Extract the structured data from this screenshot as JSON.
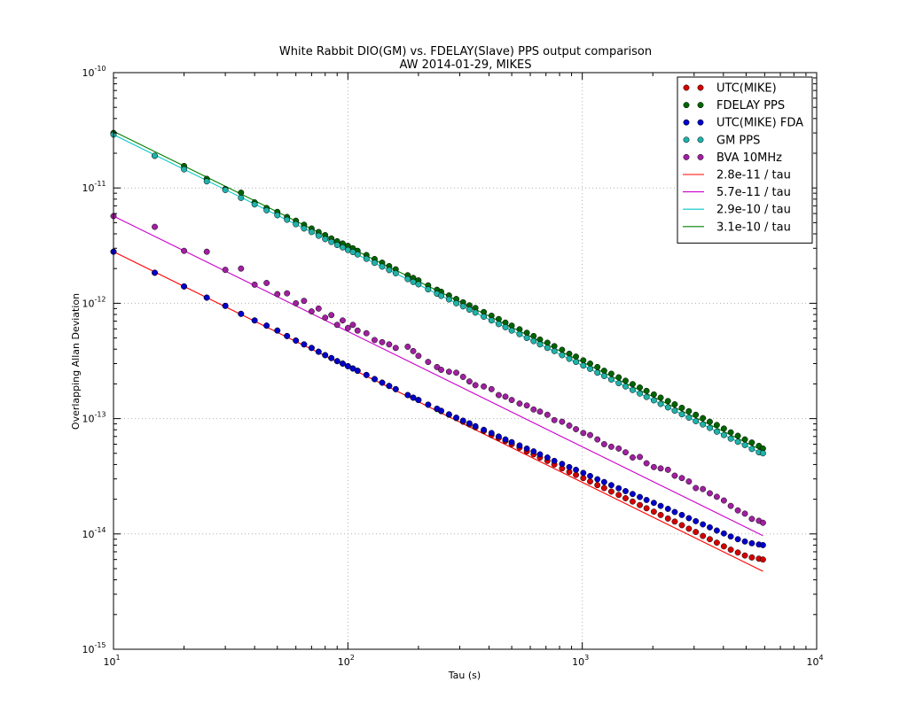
{
  "chart_data": {
    "type": "scatter",
    "title": "White Rabbit DIO(GM) vs. FDELAY(Slave) PPS output comparison",
    "subtitle": "AW 2014-01-29, MIKES",
    "xlabel": "Tau (s)",
    "ylabel": "Overlapping Allan Deviation",
    "x_scale": "log",
    "y_scale": "log",
    "xlim": [
      10,
      10000
    ],
    "ylim": [
      1e-15,
      1e-10
    ],
    "grid": true,
    "legend_position": "top-right",
    "x_tick_labels": [
      {
        "base": "10",
        "exp": "1"
      },
      {
        "base": "10",
        "exp": "2"
      },
      {
        "base": "10",
        "exp": "3"
      },
      {
        "base": "10",
        "exp": "4"
      }
    ],
    "y_tick_labels": [
      {
        "base": "10",
        "exp": "-15"
      },
      {
        "base": "10",
        "exp": "-14"
      },
      {
        "base": "10",
        "exp": "-13"
      },
      {
        "base": "10",
        "exp": "-12"
      },
      {
        "base": "10",
        "exp": "-11"
      },
      {
        "base": "10",
        "exp": "-10"
      }
    ],
    "tau": [
      10,
      15,
      20,
      25,
      30,
      35,
      40,
      45,
      50,
      55,
      60,
      65,
      70,
      75,
      80,
      85,
      90,
      95,
      100,
      105,
      110,
      120,
      130,
      140,
      150,
      160,
      180,
      190,
      200,
      220,
      240,
      250,
      270,
      290,
      310,
      330,
      350,
      380,
      410,
      440,
      470,
      500,
      540,
      580,
      620,
      660,
      710,
      760,
      820,
      880,
      940,
      1010,
      1080,
      1160,
      1240,
      1330,
      1430,
      1530,
      1640,
      1760,
      1880,
      2020,
      2160,
      2320,
      2480,
      2660,
      2850,
      3050,
      3270,
      3500,
      3750,
      4020,
      4300,
      4610,
      4940,
      5290,
      5670,
      5900
    ],
    "series": [
      {
        "name": "UTC(MIKE)",
        "kind": "points",
        "color": "#d40000",
        "values": [
          2.8e-12,
          1.84e-12,
          1.4e-12,
          1.12e-12,
          9.5e-13,
          8.1e-13,
          7.1e-13,
          6.4e-13,
          5.8e-13,
          5.2e-13,
          4.75e-13,
          4.4e-13,
          4.1e-13,
          3.8e-13,
          3.55e-13,
          3.35e-13,
          3.15e-13,
          3e-13,
          2.85e-13,
          2.72e-13,
          2.6e-13,
          2.39e-13,
          2.2e-13,
          2.05e-13,
          1.92e-13,
          1.8e-13,
          1.6e-13,
          1.52e-13,
          1.45e-13,
          1.32e-13,
          1.21e-13,
          1.16e-13,
          1.08e-13,
          1.01e-13,
          9.4e-14,
          8.9e-14,
          8.4e-14,
          7.8e-14,
          7.2e-14,
          6.8e-14,
          6.4e-14,
          6e-14,
          5.6e-14,
          5.2e-14,
          4.9e-14,
          4.6e-14,
          4.3e-14,
          4e-14,
          3.7e-14,
          3.45e-14,
          3.25e-14,
          3.05e-14,
          2.85e-14,
          2.65e-14,
          2.5e-14,
          2.33e-14,
          2.18e-14,
          2.04e-14,
          1.91e-14,
          1.78e-14,
          1.67e-14,
          1.56e-14,
          1.46e-14,
          1.36e-14,
          1.28e-14,
          1.19e-14,
          1.11e-14,
          1.04e-14,
          9.6e-15,
          9e-15,
          8.4e-15,
          7.8e-15,
          7.3e-15,
          6.9e-15,
          6.5e-15,
          6.25e-15,
          6.1e-15,
          6e-15
        ]
      },
      {
        "name": "FDELAY PPS",
        "kind": "points",
        "color": "#006400",
        "values": [
          3e-11,
          1.9e-11,
          1.55e-11,
          1.2e-11,
          9.8e-12,
          9.1e-12,
          7.5e-12,
          6.7e-12,
          6.2e-12,
          5.6e-12,
          5.2e-12,
          4.8e-12,
          4.45e-12,
          4.15e-12,
          3.9e-12,
          3.65e-12,
          3.45e-12,
          3.3e-12,
          3.15e-12,
          3e-12,
          2.85e-12,
          2.62e-12,
          2.42e-12,
          2.25e-12,
          2.1e-12,
          1.97e-12,
          1.75e-12,
          1.66e-12,
          1.58e-12,
          1.43e-12,
          1.31e-12,
          1.26e-12,
          1.17e-12,
          1.09e-12,
          1.02e-12,
          9.6e-13,
          9.1e-13,
          8.4e-13,
          7.8e-13,
          7.3e-13,
          6.8e-13,
          6.4e-13,
          5.95e-13,
          5.55e-13,
          5.2e-13,
          4.85e-13,
          4.55e-13,
          4.25e-13,
          3.95e-13,
          3.65e-13,
          3.45e-13,
          3.2e-13,
          3e-13,
          2.8e-13,
          2.6e-13,
          2.45e-13,
          2.28e-13,
          2.13e-13,
          1.99e-13,
          1.86e-13,
          1.74e-13,
          1.62e-13,
          1.52e-13,
          1.42e-13,
          1.33e-13,
          1.24e-13,
          1.16e-13,
          1.08e-13,
          1.01e-13,
          9.4e-14,
          8.8e-14,
          8.2e-14,
          7.6e-14,
          7.1e-14,
          6.6e-14,
          6.2e-14,
          5.8e-14,
          5.5e-14
        ]
      },
      {
        "name": "UTC(MIKE) FDA",
        "kind": "points",
        "color": "#0000cc",
        "values": [
          2.8e-12,
          1.84e-12,
          1.4e-12,
          1.12e-12,
          9.5e-13,
          8.1e-13,
          7.1e-13,
          6.4e-13,
          5.8e-13,
          5.2e-13,
          4.75e-13,
          4.4e-13,
          4.1e-13,
          3.8e-13,
          3.55e-13,
          3.35e-13,
          3.15e-13,
          3e-13,
          2.85e-13,
          2.72e-13,
          2.6e-13,
          2.39e-13,
          2.2e-13,
          2.05e-13,
          1.92e-13,
          1.8e-13,
          1.6e-13,
          1.52e-13,
          1.45e-13,
          1.32e-13,
          1.22e-13,
          1.17e-13,
          1.09e-13,
          1.02e-13,
          9.6e-14,
          9.1e-14,
          8.6e-14,
          8e-14,
          7.5e-14,
          7e-14,
          6.6e-14,
          6.25e-14,
          5.85e-14,
          5.5e-14,
          5.2e-14,
          4.9e-14,
          4.6e-14,
          4.3e-14,
          4.05e-14,
          3.8e-14,
          3.6e-14,
          3.38e-14,
          3.18e-14,
          2.98e-14,
          2.82e-14,
          2.65e-14,
          2.49e-14,
          2.35e-14,
          2.22e-14,
          2.09e-14,
          1.97e-14,
          1.86e-14,
          1.75e-14,
          1.65e-14,
          1.55e-14,
          1.46e-14,
          1.37e-14,
          1.29e-14,
          1.21e-14,
          1.14e-14,
          1.07e-14,
          1.01e-14,
          9.5e-15,
          9e-15,
          8.6e-15,
          8.3e-15,
          8.1e-15,
          8e-15
        ]
      },
      {
        "name": "GM PPS",
        "kind": "points",
        "color": "#20b2aa",
        "values": [
          2.9e-11,
          1.9e-11,
          1.45e-11,
          1.14e-11,
          9.6e-12,
          8.2e-12,
          7.2e-12,
          6.4e-12,
          5.8e-12,
          5.3e-12,
          4.85e-12,
          4.45e-12,
          4.15e-12,
          3.85e-12,
          3.6e-12,
          3.4e-12,
          3.2e-12,
          3.05e-12,
          2.9e-12,
          2.78e-12,
          2.65e-12,
          2.43e-12,
          2.24e-12,
          2.08e-12,
          1.94e-12,
          1.82e-12,
          1.62e-12,
          1.53e-12,
          1.46e-12,
          1.32e-12,
          1.21e-12,
          1.16e-12,
          1.08e-12,
          1e-12,
          9.4e-13,
          8.8e-13,
          8.3e-13,
          7.65e-13,
          7.1e-13,
          6.6e-13,
          6.2e-13,
          5.8e-13,
          5.4e-13,
          5e-13,
          4.7e-13,
          4.4e-13,
          4.1e-13,
          3.85e-13,
          3.55e-13,
          3.3e-13,
          3.1e-13,
          2.88e-13,
          2.7e-13,
          2.5e-13,
          2.34e-13,
          2.18e-13,
          2.03e-13,
          1.9e-13,
          1.77e-13,
          1.65e-13,
          1.54e-13,
          1.44e-13,
          1.34e-13,
          1.25e-13,
          1.17e-13,
          1.09e-13,
          1.02e-13,
          9.5e-14,
          8.9e-14,
          8.3e-14,
          7.7e-14,
          7.2e-14,
          6.7e-14,
          6.3e-14,
          5.9e-14,
          5.45e-14,
          5.1e-14,
          5e-14
        ]
      },
      {
        "name": "BVA 10MHz",
        "kind": "points",
        "color": "#a020a0",
        "values": [
          5.7e-12,
          4.6e-12,
          2.85e-12,
          2.8e-12,
          1.95e-12,
          2e-12,
          1.45e-12,
          1.5e-12,
          1.2e-12,
          1.22e-12,
          1e-12,
          1.05e-12,
          8.5e-13,
          9e-13,
          7.5e-13,
          7.9e-13,
          6.5e-13,
          7.1e-13,
          6.1e-13,
          6.5e-13,
          5.8e-13,
          5.5e-13,
          4.8e-13,
          4.6e-13,
          4.4e-13,
          4.1e-13,
          4.2e-13,
          3.85e-13,
          3.5e-13,
          3.1e-13,
          2.8e-13,
          2.65e-13,
          2.55e-13,
          2.5e-13,
          2.3e-13,
          2.1e-13,
          1.95e-13,
          1.9e-13,
          1.8e-13,
          1.6e-13,
          1.55e-13,
          1.45e-13,
          1.35e-13,
          1.3e-13,
          1.2e-13,
          1.15e-13,
          1.08e-13,
          9.7e-14,
          9.4e-14,
          8.7e-14,
          8.1e-14,
          7.5e-14,
          7.2e-14,
          6.6e-14,
          6e-14,
          5.7e-14,
          5.5e-14,
          5.1e-14,
          4.6e-14,
          4.65e-14,
          4.1e-14,
          3.8e-14,
          3.7e-14,
          3.6e-14,
          3.2e-14,
          3.05e-14,
          2.85e-14,
          2.5e-14,
          2.45e-14,
          2.25e-14,
          2.1e-14,
          1.95e-14,
          1.75e-14,
          1.6e-14,
          1.5e-14,
          1.35e-14,
          1.3e-14,
          1.25e-14
        ]
      },
      {
        "name": "2.8e-11 / tau",
        "kind": "line",
        "color": "#ff0000",
        "coeff": 2.8e-11
      },
      {
        "name": "5.7e-11 / tau",
        "kind": "line",
        "color": "#cc00cc",
        "coeff": 5.7e-11
      },
      {
        "name": "2.9e-10 / tau",
        "kind": "line",
        "color": "#00c8c8",
        "coeff": 2.9e-10
      },
      {
        "name": "3.1e-10 / tau",
        "kind": "line",
        "color": "#008000",
        "coeff": 3.1e-10
      }
    ],
    "fit_range": [
      10,
      5900
    ]
  }
}
